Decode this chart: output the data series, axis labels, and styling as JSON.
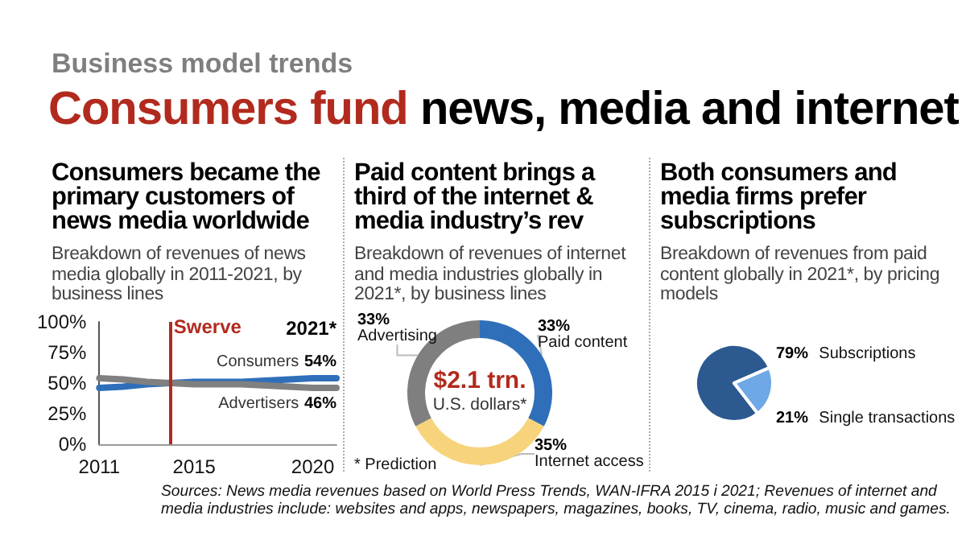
{
  "chart_data": [
    {
      "type": "other",
      "title": "Consumers fund news, media and internet",
      "subtitle": "Business model trends",
      "annotations": [
        "Sources: News media revenues based on World Press Trends, WAN-IFRA 2015 i 2021; Revenues of internet and media industries include: websites and apps, newspapers, magazines, books, TV, cinema, radio, music and games."
      ]
    },
    {
      "type": "line",
      "title": "Consumers became the primary customers of news media worldwide",
      "subtitle": "Breakdown of revenues of news media globally in 2011-2021, by business lines",
      "x": [
        2011,
        2012,
        2013,
        2014,
        2015,
        2016,
        2017,
        2018,
        2019,
        2020,
        2021
      ],
      "series": [
        {
          "name": "Consumers",
          "color": "#2f6fba",
          "values": [
            46,
            47,
            49,
            50,
            51,
            51,
            51,
            52,
            53,
            54,
            54
          ],
          "value_labels": [
            null,
            null,
            null,
            null,
            null,
            null,
            null,
            null,
            null,
            null,
            "54%"
          ]
        },
        {
          "name": "Advertisers",
          "color": "#808080",
          "values": [
            54,
            53,
            51,
            50,
            49,
            49,
            49,
            48,
            47,
            46,
            46
          ],
          "value_labels": [
            null,
            null,
            null,
            null,
            null,
            null,
            null,
            null,
            null,
            null,
            "46%"
          ]
        }
      ],
      "xlim": [
        2011,
        2021
      ],
      "xticks": [
        2011,
        2015,
        2020
      ],
      "ylim": [
        0,
        100
      ],
      "yticks": [
        {
          "value": 0,
          "label": "0%"
        },
        {
          "value": 25,
          "label": "25%"
        },
        {
          "value": 50,
          "label": "50%"
        },
        {
          "value": 75,
          "label": "75%"
        },
        {
          "value": 100,
          "label": "100%"
        }
      ],
      "ref_lines": [
        {
          "axis": "x",
          "value": 2014,
          "label": "Swerve",
          "color": "#b22a1e"
        }
      ],
      "annotations": [
        "2021*"
      ],
      "grid": false,
      "legend": false,
      "marker": "none",
      "line_style": "solid"
    },
    {
      "type": "donut",
      "title": "Paid content brings a third of the internet & media industry’s rev",
      "subtitle": "Breakdown of revenues of internet and media industries globally in 2021*, by business lines",
      "categories": [
        "Paid content",
        "Internet access",
        "Advertising"
      ],
      "values": [
        33,
        35,
        33
      ],
      "colors": [
        "#2f6fba",
        "#f7d47c",
        "#7f7f7f"
      ],
      "value_labels": [
        "33%",
        "35%",
        "33%"
      ],
      "annotations": [
        "$2.1 trn.",
        "U.S. dollars*",
        "* Prediction"
      ]
    },
    {
      "type": "pie",
      "title": "Both consumers and media firms prefer subscriptions",
      "subtitle": "Breakdown of revenues from paid content globally in 2021*, by pricing models",
      "categories": [
        "Subscriptions",
        "Single transactions"
      ],
      "values": [
        79,
        21
      ],
      "colors": [
        "#2c5a90",
        "#6ea8e6"
      ],
      "value_labels": [
        "79%",
        "21%"
      ]
    }
  ]
}
